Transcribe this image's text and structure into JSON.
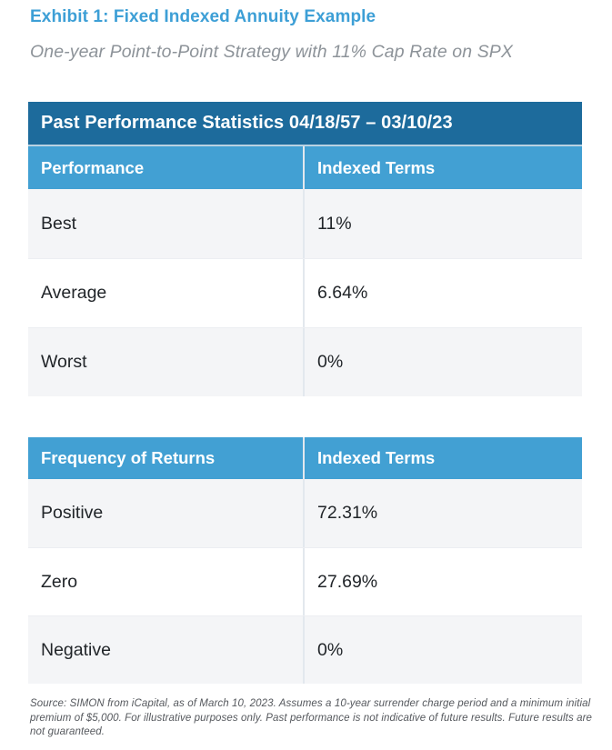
{
  "colors": {
    "title_blue": "#3d9fd6",
    "subtitle_gray": "#8d9399",
    "banner_bg": "#1d6b9c",
    "header_bg": "#42a0d3",
    "header_text": "#ffffff",
    "row_alt_bg": "#f4f5f7",
    "row_bg": "#ffffff",
    "body_text": "#212529",
    "footnote_gray": "#55585d"
  },
  "header": {
    "title": "Exhibit 1: Fixed Indexed Annuity Example",
    "subtitle": "One-year Point-to-Point Strategy with 11% Cap Rate on SPX"
  },
  "tables": [
    {
      "banner": "Past Performance Statistics 04/18/57 – 03/10/23",
      "columns": [
        "Performance",
        "Indexed Terms"
      ],
      "rows": [
        [
          "Best",
          "11%"
        ],
        [
          "Average",
          "6.64%"
        ],
        [
          "Worst",
          "0%"
        ]
      ]
    },
    {
      "columns": [
        "Frequency of Returns",
        "Indexed Terms"
      ],
      "rows": [
        [
          "Positive",
          "72.31%"
        ],
        [
          "Zero",
          "27.69%"
        ],
        [
          "Negative",
          "0%"
        ]
      ]
    }
  ],
  "footnote": "Source: SIMON from iCapital, as of March 10, 2023. Assumes a 10-year surrender charge period and a minimum initial premium of $5,000. For illustrative purposes only. Past performance is not indicative of future results. Future results are not guaranteed."
}
